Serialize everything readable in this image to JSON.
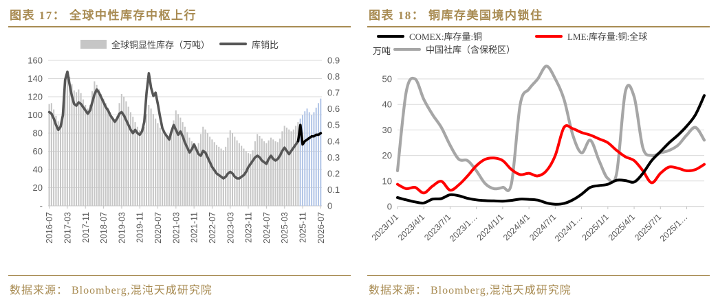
{
  "accent_color": "#A88B52",
  "panels": [
    {
      "title": "图表 17：  全球中性库存中枢上行",
      "source": "数据来源：  Bloomberg,混沌天成研究院"
    },
    {
      "title": "图表 18：  铜库存美国境内锁住",
      "source": "数据来源：  Bloomberg,混沌天成研究院"
    }
  ],
  "chart_data": [
    {
      "type": "bar",
      "title": "全球中性库存中枢上行",
      "x_start": "2016-07",
      "x_interval": "monthly",
      "x_tick_labels": [
        "2016-07",
        "2017-03",
        "2017-11",
        "2018-07",
        "2019-03",
        "2019-11",
        "2020-07",
        "2021-03",
        "2021-11",
        "2022-07",
        "2023-03",
        "2023-11",
        "2024-07",
        "2025-03",
        "2025-11",
        "2026-07"
      ],
      "x_tick_step_months": 8,
      "left_axis": {
        "min": 0,
        "max": 160,
        "tick_labels": [
          "160",
          "140",
          "120",
          "100",
          "80",
          "60",
          "40",
          "20",
          "-"
        ]
      },
      "right_axis": {
        "min": 0,
        "max": 0.9,
        "tick_labels": [
          "0.9",
          "0.8",
          "0.7",
          "0.6",
          "0.5",
          "0.4",
          "0.3",
          "0.2",
          "0.1",
          "0"
        ]
      },
      "grid": true,
      "legend_position": "top-center",
      "series": {
        "forecast_start_index": 111,
        "bars": {
          "name": "全球铜显性库存（万吨）",
          "axis": "left",
          "color_history": "#C6C6C6",
          "color_forecast": "#B3C6E7",
          "values": [
            112,
            113,
            106,
            99,
            93,
            89,
            97,
            132,
            148,
            142,
            134,
            127,
            125,
            128,
            124,
            117,
            111,
            107,
            111,
            126,
            137,
            133,
            128,
            123,
            118,
            113,
            108,
            103,
            98,
            95,
            99,
            113,
            123,
            120,
            115,
            109,
            103,
            98,
            92,
            87,
            83,
            80,
            87,
            101,
            111,
            107,
            101,
            96,
            91,
            86,
            81,
            78,
            76,
            73,
            80,
            94,
            105,
            101,
            97,
            92,
            87,
            81,
            75,
            71,
            67,
            64,
            69,
            79,
            87,
            84,
            80,
            76,
            73,
            70,
            67,
            65,
            63,
            61,
            65,
            75,
            83,
            80,
            76,
            72,
            69,
            66,
            63,
            60,
            58,
            57,
            61,
            71,
            79,
            77,
            74,
            71,
            69,
            72,
            75,
            73,
            71,
            70,
            74,
            82,
            88,
            86,
            84,
            82,
            84,
            88,
            92,
            96,
            100,
            104,
            107,
            103,
            100,
            103,
            108,
            113,
            118
          ]
        },
        "line": {
          "name": "库销比",
          "axis": "right",
          "color_history": "#565656",
          "color_forecast": "#000000",
          "values": [
            0.58,
            0.57,
            0.54,
            0.5,
            0.47,
            0.49,
            0.56,
            0.78,
            0.83,
            0.75,
            0.68,
            0.63,
            0.62,
            0.64,
            0.63,
            0.61,
            0.59,
            0.57,
            0.59,
            0.64,
            0.69,
            0.72,
            0.7,
            0.67,
            0.64,
            0.61,
            0.59,
            0.56,
            0.54,
            0.52,
            0.54,
            0.57,
            0.58,
            0.56,
            0.53,
            0.5,
            0.47,
            0.45,
            0.47,
            0.45,
            0.44,
            0.46,
            0.52,
            0.7,
            0.82,
            0.73,
            0.68,
            0.7,
            0.63,
            0.55,
            0.48,
            0.45,
            0.43,
            0.41,
            0.46,
            0.5,
            0.47,
            0.44,
            0.46,
            0.43,
            0.39,
            0.36,
            0.33,
            0.35,
            0.38,
            0.35,
            0.32,
            0.31,
            0.34,
            0.33,
            0.3,
            0.27,
            0.24,
            0.22,
            0.2,
            0.19,
            0.18,
            0.17,
            0.18,
            0.2,
            0.21,
            0.2,
            0.18,
            0.17,
            0.17,
            0.18,
            0.19,
            0.21,
            0.24,
            0.26,
            0.28,
            0.3,
            0.31,
            0.3,
            0.28,
            0.27,
            0.26,
            0.29,
            0.31,
            0.29,
            0.28,
            0.29,
            0.31,
            0.34,
            0.36,
            0.34,
            0.32,
            0.34,
            0.36,
            0.38,
            0.4,
            0.5,
            0.38,
            0.4,
            0.41,
            0.42,
            0.43,
            0.43,
            0.44,
            0.44,
            0.45
          ]
        }
      }
    },
    {
      "type": "line",
      "title": "铜库存美国境内锁住",
      "unit_label": "万吨",
      "x_start": "2023-01",
      "x_interval": "monthly",
      "x_tick_labels": [
        "2023/1/1",
        "2023/4/1",
        "2023/7/1",
        "2023/1…",
        "2024/1/1",
        "2024/4/1",
        "2024/7/1",
        "2024/1…",
        "2025/1/1",
        "2025/4/1",
        "2025/7/1",
        "2025/1…"
      ],
      "x_tick_step_months": 3,
      "y_axis": {
        "min": 0,
        "max_gridline": 50,
        "plot_max": 57,
        "tick_labels": [
          "50",
          "40",
          "30",
          "20",
          "10",
          "0"
        ]
      },
      "grid": true,
      "legend_position": "top-left",
      "series": [
        {
          "name": "COMEX:库存量:铜",
          "color": "#000000",
          "values": [
            3.5,
            2.6,
            1.8,
            1.4,
            2.9,
            3.1,
            4.6,
            4.2,
            3.2,
            2.6,
            2.3,
            2.2,
            2.1,
            2.4,
            2.9,
            2.8,
            2.5,
            1.4,
            0.9,
            1.2,
            2.6,
            4.8,
            7.5,
            8.2,
            8.7,
            10.3,
            10.2,
            9.6,
            13,
            18,
            21.5,
            25,
            28,
            31.5,
            36,
            43.5
          ]
        },
        {
          "name": "LME:库存量:铜:全球",
          "color": "#FF0000",
          "values": [
            8.7,
            7.0,
            7.5,
            5.3,
            8.0,
            9.9,
            6.4,
            8.5,
            12,
            16,
            18.5,
            19,
            18,
            14.5,
            12.5,
            13,
            12,
            14,
            20,
            31,
            30.5,
            29,
            28,
            26.5,
            25,
            22,
            19.5,
            18,
            14,
            9.3,
            13,
            15.5,
            15,
            14,
            14.5,
            16.5
          ]
        },
        {
          "name": "中国社库（含保税区）",
          "color": "#A6A6A6",
          "values": [
            14,
            45,
            50,
            42,
            36,
            31,
            24,
            18.5,
            18,
            14,
            9,
            7,
            7.5,
            9,
            40,
            46,
            50,
            55,
            50,
            42,
            28,
            21,
            26,
            18,
            11,
            13,
            45,
            43,
            23,
            20,
            21,
            22,
            24,
            28,
            31,
            26
          ]
        }
      ]
    }
  ]
}
